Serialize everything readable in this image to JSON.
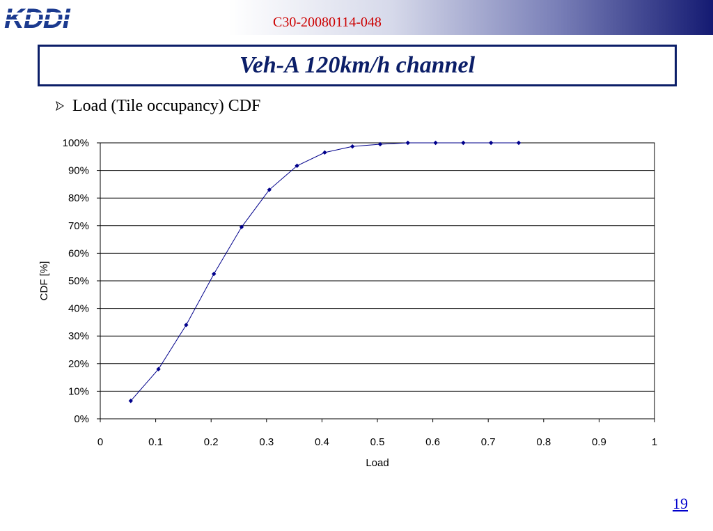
{
  "header": {
    "logo_text": "KDDI",
    "doc_id": "C30-20080114-048"
  },
  "slide": {
    "title": "Veh-A 120km/h channel",
    "bullet": "Load (Tile occupancy) CDF",
    "page_number": "19"
  },
  "colors": {
    "title_navy": "#0b1e68",
    "doc_id_red": "#cc0000",
    "series_line": "#00008b",
    "logo_blue": "#1b3a8f"
  },
  "chart_data": {
    "type": "line",
    "title": "",
    "xlabel": "Load",
    "ylabel": "CDF [%]",
    "xlim": [
      0,
      1
    ],
    "ylim": [
      0,
      100
    ],
    "x_ticks": [
      "0",
      "0.1",
      "0.2",
      "0.3",
      "0.4",
      "0.5",
      "0.6",
      "0.7",
      "0.8",
      "0.9",
      "1"
    ],
    "y_ticks": [
      "0%",
      "10%",
      "20%",
      "30%",
      "40%",
      "50%",
      "60%",
      "70%",
      "80%",
      "90%",
      "100%"
    ],
    "grid": "horizontal",
    "legend": "none",
    "series": [
      {
        "x": [
          0.055,
          0.105,
          0.155,
          0.205,
          0.255,
          0.305,
          0.355,
          0.405,
          0.455,
          0.505,
          0.555,
          0.605,
          0.655,
          0.705,
          0.755
        ],
        "y": [
          6.5,
          18,
          34,
          52.5,
          69.5,
          83,
          91.7,
          96.5,
          98.7,
          99.5,
          100,
          100,
          100,
          100,
          100
        ]
      }
    ]
  }
}
